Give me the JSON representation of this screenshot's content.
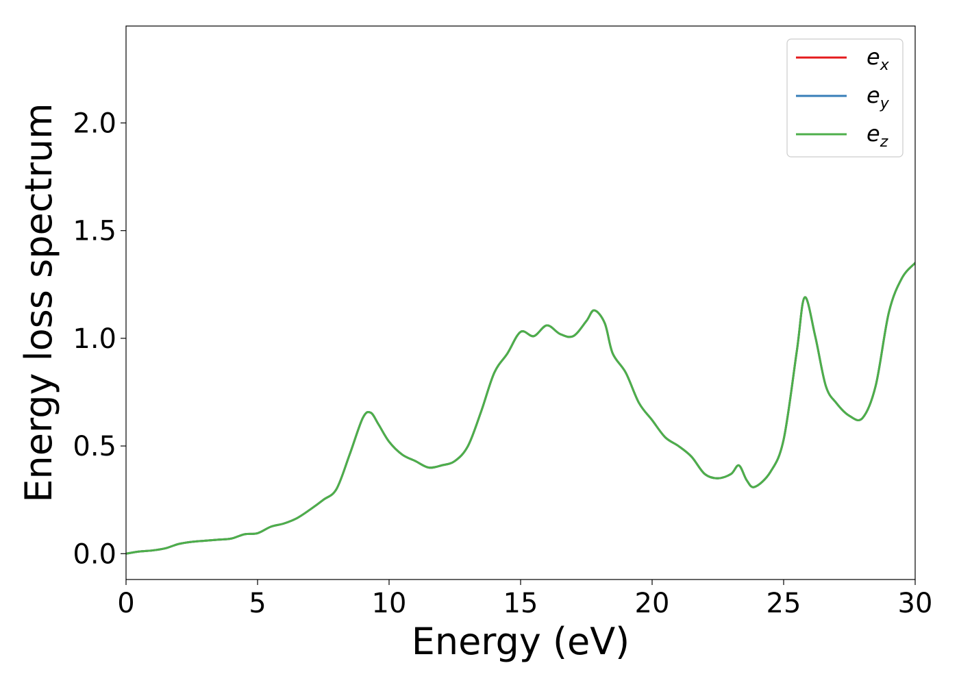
{
  "chart_data": {
    "type": "line",
    "title": "",
    "xlabel": "Energy (eV)",
    "ylabel": "Energy loss spectrum",
    "xlim": [
      0,
      30
    ],
    "ylim": [
      -0.12,
      2.45
    ],
    "xticks": [
      0,
      5,
      10,
      15,
      20,
      25,
      30
    ],
    "xtick_labels": [
      "0",
      "5",
      "10",
      "15",
      "20",
      "25",
      "30"
    ],
    "yticks": [
      0.0,
      0.5,
      1.0,
      1.5,
      2.0
    ],
    "ytick_labels": [
      "0.0",
      "0.5",
      "1.0",
      "1.5",
      "2.0"
    ],
    "grid": false,
    "legend_position": "top-right",
    "x": [
      0,
      0.5,
      1,
      1.5,
      2,
      2.5,
      3,
      3.5,
      4,
      4.5,
      5,
      5.5,
      6,
      6.5,
      7,
      7.5,
      8,
      8.5,
      9,
      9.3,
      9.6,
      10,
      10.5,
      11,
      11.5,
      12,
      12.5,
      13,
      13.5,
      14,
      14.5,
      15,
      15.5,
      16,
      16.5,
      17,
      17.5,
      17.8,
      18.2,
      18.5,
      19,
      19.5,
      20,
      20.5,
      21,
      21.5,
      22,
      22.5,
      23,
      23.3,
      23.6,
      23.9,
      24.5,
      25,
      25.5,
      25.8,
      26.2,
      26.6,
      27,
      27.5,
      28,
      28.5,
      29,
      29.5,
      30
    ],
    "series": [
      {
        "name": "e_x",
        "label_main": "e",
        "label_sub": "x",
        "color": "#e41a1c",
        "values": [
          0.0,
          0.01,
          0.015,
          0.025,
          0.045,
          0.055,
          0.06,
          0.065,
          0.07,
          0.09,
          0.095,
          0.125,
          0.14,
          0.165,
          0.205,
          0.25,
          0.3,
          0.46,
          0.63,
          0.655,
          0.6,
          0.52,
          0.46,
          0.43,
          0.4,
          0.41,
          0.43,
          0.5,
          0.66,
          0.84,
          0.93,
          1.03,
          1.01,
          1.06,
          1.02,
          1.01,
          1.08,
          1.13,
          1.07,
          0.93,
          0.84,
          0.7,
          0.62,
          0.54,
          0.5,
          0.45,
          0.37,
          0.35,
          0.37,
          0.41,
          0.34,
          0.31,
          0.38,
          0.53,
          0.94,
          1.19,
          1.01,
          0.78,
          0.7,
          0.64,
          0.63,
          0.78,
          1.12,
          1.28,
          1.35
        ]
      },
      {
        "name": "e_y",
        "label_main": "e",
        "label_sub": "y",
        "color": "#377eb8",
        "values": [
          0.0,
          0.01,
          0.015,
          0.025,
          0.045,
          0.055,
          0.06,
          0.065,
          0.07,
          0.09,
          0.095,
          0.125,
          0.14,
          0.165,
          0.205,
          0.25,
          0.3,
          0.46,
          0.63,
          0.655,
          0.6,
          0.52,
          0.46,
          0.43,
          0.4,
          0.41,
          0.43,
          0.5,
          0.66,
          0.84,
          0.93,
          1.03,
          1.01,
          1.06,
          1.02,
          1.01,
          1.08,
          1.13,
          1.07,
          0.93,
          0.84,
          0.7,
          0.62,
          0.54,
          0.5,
          0.45,
          0.37,
          0.35,
          0.37,
          0.41,
          0.34,
          0.31,
          0.38,
          0.53,
          0.94,
          1.19,
          1.01,
          0.78,
          0.7,
          0.64,
          0.63,
          0.78,
          1.12,
          1.28,
          1.35
        ]
      },
      {
        "name": "e_z",
        "label_main": "e",
        "label_sub": "z",
        "color": "#4daf4a",
        "values": [
          0.0,
          0.01,
          0.015,
          0.025,
          0.045,
          0.055,
          0.06,
          0.065,
          0.07,
          0.09,
          0.095,
          0.125,
          0.14,
          0.165,
          0.205,
          0.25,
          0.3,
          0.46,
          0.63,
          0.655,
          0.6,
          0.52,
          0.46,
          0.43,
          0.4,
          0.41,
          0.43,
          0.5,
          0.66,
          0.84,
          0.93,
          1.03,
          1.01,
          1.06,
          1.02,
          1.01,
          1.08,
          1.13,
          1.07,
          0.93,
          0.84,
          0.7,
          0.62,
          0.54,
          0.5,
          0.45,
          0.37,
          0.35,
          0.37,
          0.41,
          0.34,
          0.31,
          0.38,
          0.53,
          0.94,
          1.19,
          1.01,
          0.78,
          0.7,
          0.64,
          0.63,
          0.78,
          1.12,
          1.28,
          1.35
        ]
      }
    ]
  }
}
